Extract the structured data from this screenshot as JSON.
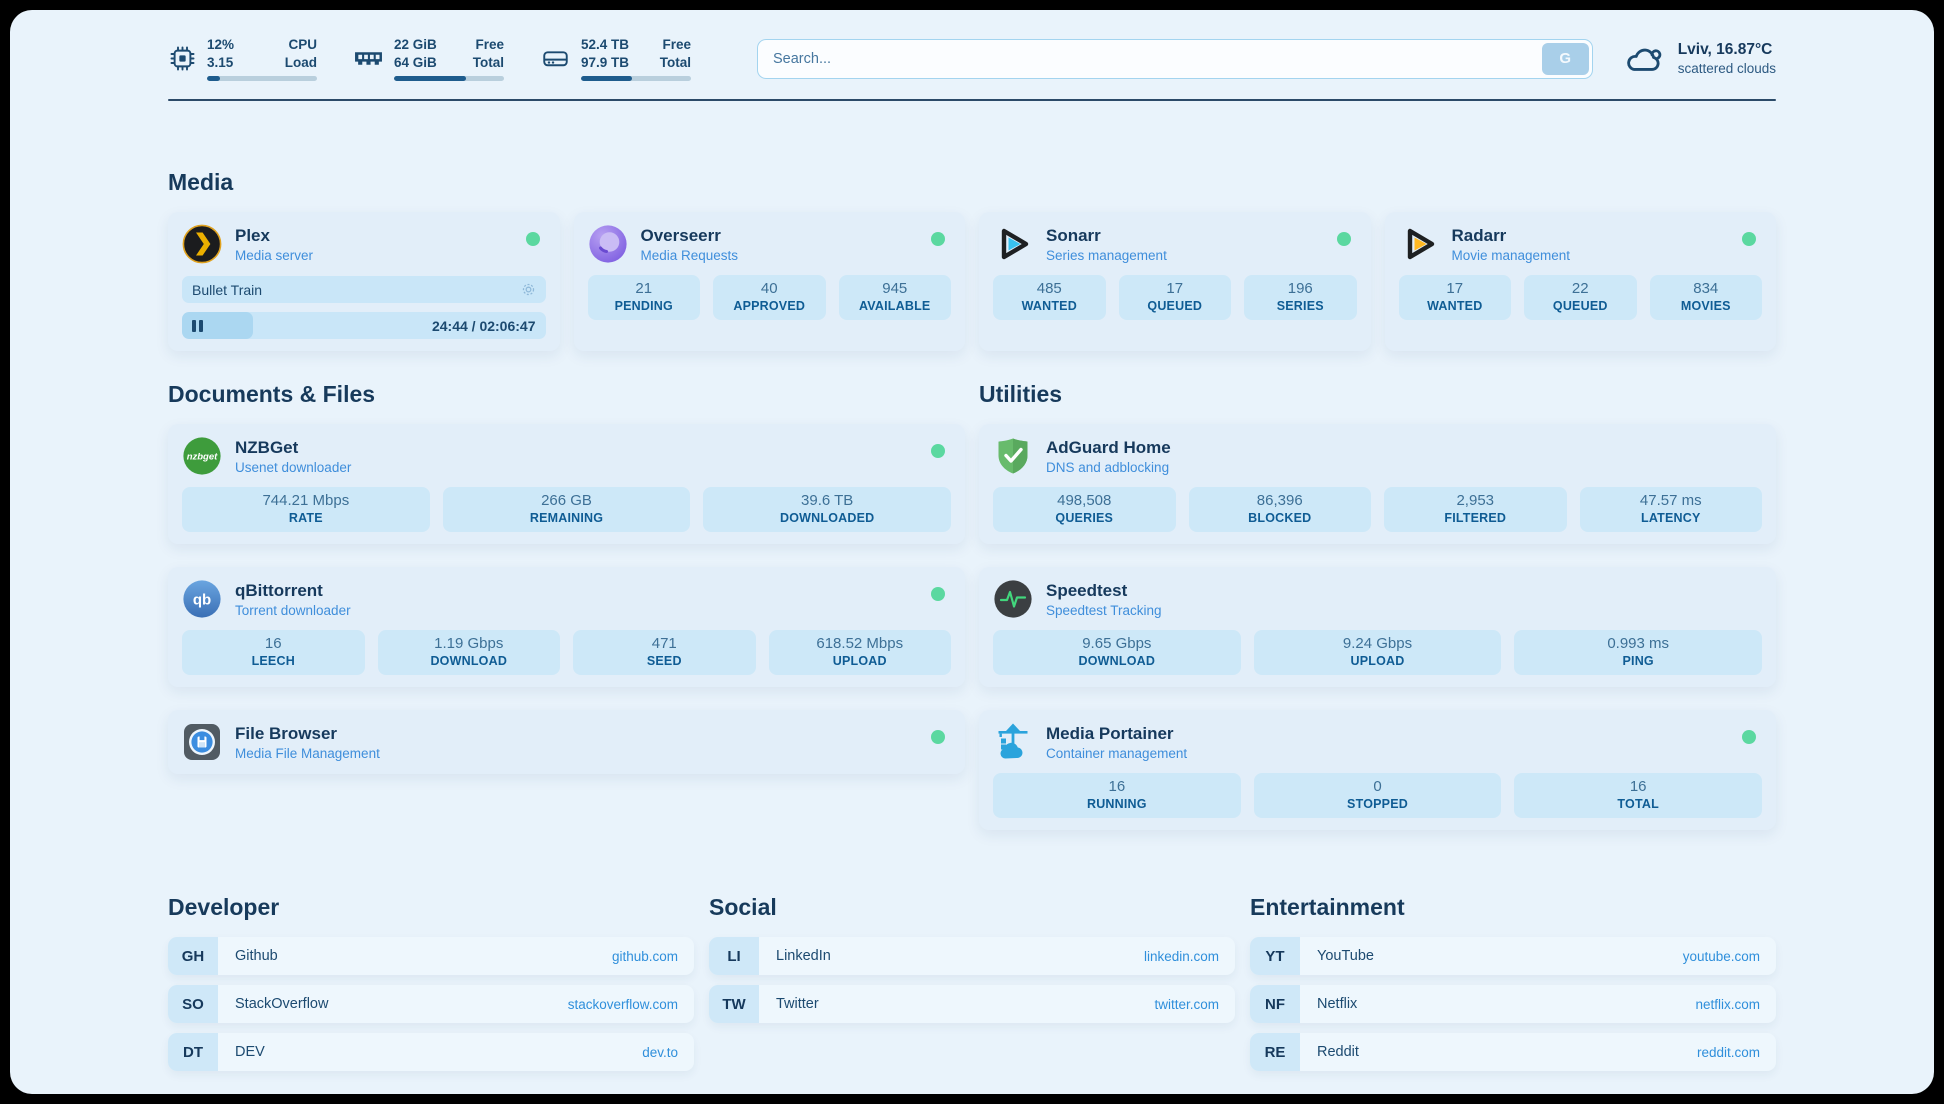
{
  "header": {
    "system_stats": [
      {
        "icon": "cpu-icon",
        "values": [
          "12%",
          "3.15"
        ],
        "labels": [
          "CPU",
          "Load"
        ],
        "progress_pct": 12
      },
      {
        "icon": "ram-icon",
        "values": [
          "22 GiB",
          "64 GiB"
        ],
        "labels": [
          "Free",
          "Total"
        ],
        "progress_pct": 65
      },
      {
        "icon": "disk-icon",
        "values": [
          "52.4 TB",
          "97.9 TB"
        ],
        "labels": [
          "Free",
          "Total"
        ],
        "progress_pct": 46
      }
    ],
    "search": {
      "placeholder": "Search...",
      "button_label": "G"
    },
    "weather": {
      "icon": "cloud-icon",
      "location_temp": "Lviv, 16.87°C",
      "condition": "scattered clouds"
    }
  },
  "sections": {
    "media": {
      "title": "Media",
      "apps": [
        {
          "title": "Plex",
          "subtitle": "Media server",
          "icon": "plex-icon",
          "status_dot": true,
          "player": {
            "track": "Bullet Train",
            "time_display": "24:44 / 02:06:47",
            "progress_pct": 19.5
          }
        },
        {
          "title": "Overseerr",
          "subtitle": "Media Requests",
          "icon": "overseerr-icon",
          "status_dot": true,
          "stats": [
            {
              "value": "21",
              "label": "PENDING"
            },
            {
              "value": "40",
              "label": "APPROVED"
            },
            {
              "value": "945",
              "label": "AVAILABLE"
            }
          ]
        },
        {
          "title": "Sonarr",
          "subtitle": "Series management",
          "icon": "sonarr-icon",
          "status_dot": true,
          "stats": [
            {
              "value": "485",
              "label": "WANTED"
            },
            {
              "value": "17",
              "label": "QUEUED"
            },
            {
              "value": "196",
              "label": "SERIES"
            }
          ]
        },
        {
          "title": "Radarr",
          "subtitle": "Movie management",
          "icon": "radarr-icon",
          "status_dot": true,
          "stats": [
            {
              "value": "17",
              "label": "WANTED"
            },
            {
              "value": "22",
              "label": "QUEUED"
            },
            {
              "value": "834",
              "label": "MOVIES"
            }
          ]
        }
      ]
    },
    "documents": {
      "title": "Documents & Files",
      "apps": [
        {
          "title": "NZBGet",
          "subtitle": "Usenet downloader",
          "icon": "nzbget-icon",
          "status_dot": true,
          "stats": [
            {
              "value": "744.21 Mbps",
              "label": "RATE"
            },
            {
              "value": "266 GB",
              "label": "REMAINING"
            },
            {
              "value": "39.6 TB",
              "label": "DOWNLOADED"
            }
          ]
        },
        {
          "title": "qBittorrent",
          "subtitle": "Torrent downloader",
          "icon": "qbittorrent-icon",
          "status_dot": true,
          "stats": [
            {
              "value": "16",
              "label": "LEECH"
            },
            {
              "value": "1.19 Gbps",
              "label": "DOWNLOAD"
            },
            {
              "value": "471",
              "label": "SEED"
            },
            {
              "value": "618.52 Mbps",
              "label": "UPLOAD"
            }
          ]
        },
        {
          "title": "File Browser",
          "subtitle": "Media File Management",
          "icon": "filebrowser-icon",
          "status_dot": true,
          "stats": []
        }
      ]
    },
    "utilities": {
      "title": "Utilities",
      "apps": [
        {
          "title": "AdGuard Home",
          "subtitle": "DNS and adblocking",
          "icon": "adguard-icon",
          "status_dot": false,
          "stats": [
            {
              "value": "498,508",
              "label": "QUERIES"
            },
            {
              "value": "86,396",
              "label": "BLOCKED"
            },
            {
              "value": "2,953",
              "label": "FILTERED"
            },
            {
              "value": "47.57 ms",
              "label": "LATENCY"
            }
          ]
        },
        {
          "title": "Speedtest",
          "subtitle": "Speedtest Tracking",
          "icon": "speedtest-icon",
          "status_dot": false,
          "stats": [
            {
              "value": "9.65 Gbps",
              "label": "DOWNLOAD"
            },
            {
              "value": "9.24 Gbps",
              "label": "UPLOAD"
            },
            {
              "value": "0.993 ms",
              "label": "PING"
            }
          ]
        },
        {
          "title": "Media Portainer",
          "subtitle": "Container management",
          "icon": "portainer-icon",
          "status_dot": true,
          "stats": [
            {
              "value": "16",
              "label": "RUNNING"
            },
            {
              "value": "0",
              "label": "STOPPED"
            },
            {
              "value": "16",
              "label": "TOTAL"
            }
          ]
        }
      ]
    }
  },
  "bookmarks": {
    "developer": {
      "title": "Developer",
      "links": [
        {
          "abbr": "GH",
          "name": "Github",
          "url": "github.com"
        },
        {
          "abbr": "SO",
          "name": "StackOverflow",
          "url": "stackoverflow.com"
        },
        {
          "abbr": "DT",
          "name": "DEV",
          "url": "dev.to"
        }
      ]
    },
    "social": {
      "title": "Social",
      "links": [
        {
          "abbr": "LI",
          "name": "LinkedIn",
          "url": "linkedin.com"
        },
        {
          "abbr": "TW",
          "name": "Twitter",
          "url": "twitter.com"
        }
      ]
    },
    "entertainment": {
      "title": "Entertainment",
      "links": [
        {
          "abbr": "YT",
          "name": "YouTube",
          "url": "youtube.com"
        },
        {
          "abbr": "NF",
          "name": "Netflix",
          "url": "netflix.com"
        },
        {
          "abbr": "RE",
          "name": "Reddit",
          "url": "reddit.com"
        }
      ]
    }
  },
  "colors": {
    "status_green": "#5bd8a0",
    "link_blue": "#2f8fdb",
    "navy": "#1c4a70",
    "bar_fill": "#1e5c8d",
    "pill_blue": "#cde8f8"
  }
}
